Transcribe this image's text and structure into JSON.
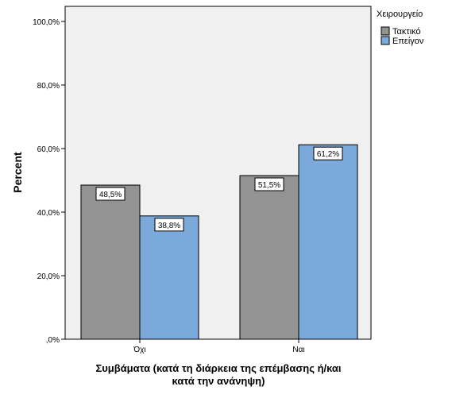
{
  "chart_data": {
    "type": "bar",
    "categories": [
      "Όχι",
      "Ναι"
    ],
    "series": [
      {
        "name": "Τακτικό",
        "values": [
          48.5,
          51.5
        ],
        "labels": [
          "48,5%",
          "51,5%"
        ],
        "color": "#939393"
      },
      {
        "name": "Επείγον",
        "values": [
          38.8,
          61.2
        ],
        "labels": [
          "38,8%",
          "61,2%"
        ],
        "color": "#7ba9d9"
      }
    ],
    "legend_title": "Χειρουργείο",
    "legend_position": "top-right",
    "ylabel": "Percent",
    "xlabel": "Συμβάματα (κατά τη διάρκεια της επέμβασης ή/και κατά την ανάνηψη)",
    "xlabel_lines": [
      "Συμβάματα (κατά τη διάρκεια της επέμβασης ή/και",
      "κατά την ανάνηψη)"
    ],
    "ylim": [
      0,
      100
    ],
    "yticks": [
      0,
      20,
      40,
      60,
      80,
      100
    ],
    "ytick_labels": [
      ",0%",
      "20,0%",
      "40,0%",
      "60,0%",
      "80,0%",
      "100,0%"
    ],
    "plot_background": "#f0f0f0",
    "grid": false
  }
}
